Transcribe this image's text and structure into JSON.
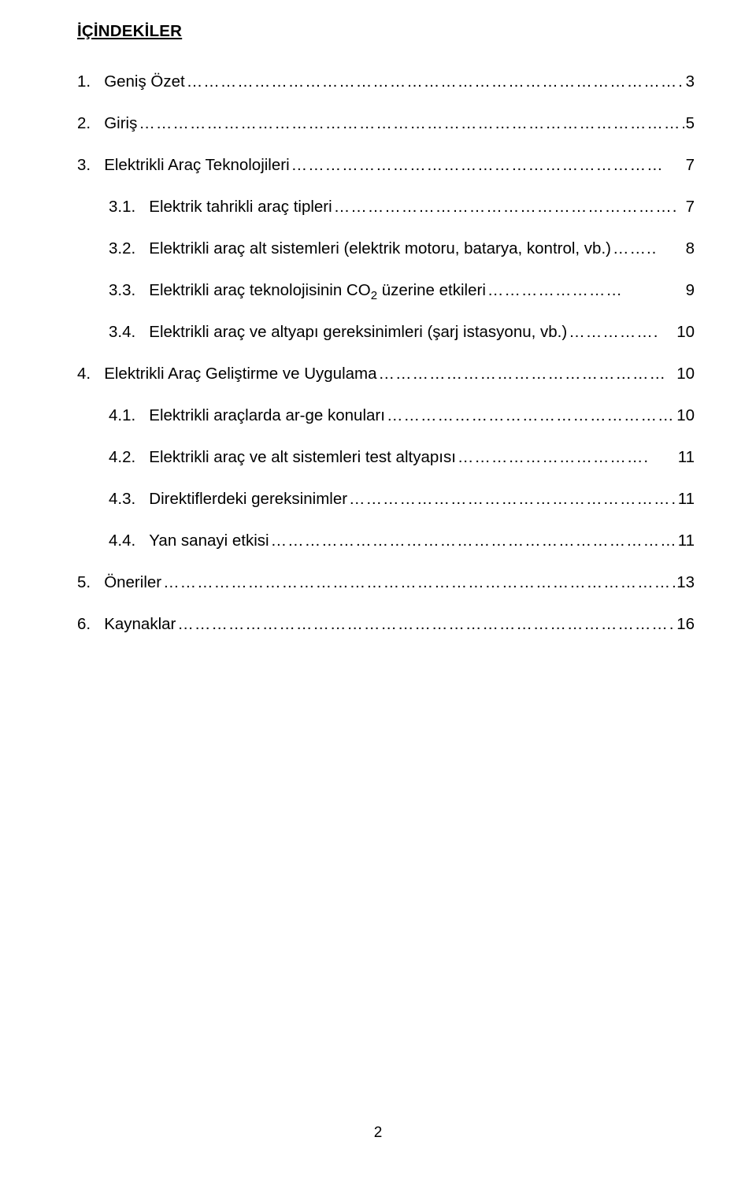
{
  "title": "İÇİNDEKİLER",
  "page_number": "2",
  "typography": {
    "body_fontsize_pt": 15,
    "title_fontsize_pt": 15,
    "font_family": "Verdana"
  },
  "colors": {
    "text": "#000000",
    "background": "#ffffff"
  },
  "toc": [
    {
      "num": "1.",
      "label": "Geniş Özet ",
      "leader": "……………………………………………………………………………………",
      "page": " 3",
      "indent": false
    },
    {
      "num": "2.",
      "label": "Giriş ",
      "leader": "………………………………………………………………………………………………..",
      "page": " 5",
      "indent": false
    },
    {
      "num": "3.",
      "label": "Elektrikli Araç Teknolojileri ",
      "leader": "…………………………………………………………",
      "page": " 7",
      "indent": false
    },
    {
      "num": "3.1.",
      "label": "Elektrik tahrikli araç tipleri ",
      "leader": "…………………………………………………….",
      "page": " 7",
      "indent": true
    },
    {
      "num": "3.2.",
      "label": "Elektrikli araç alt sistemleri (elektrik motoru, batarya, kontrol, vb.) ",
      "leader": "……..",
      "page": " 8",
      "indent": true
    },
    {
      "num": "3.3.",
      "label_html": "Elektrikli araç teknolojisinin CO<sub class=\"sub\">2</sub> üzerine etkileri ",
      "leader": "……………………",
      "page": " 9",
      "indent": true
    },
    {
      "num": "3.4.",
      "label": "Elektrikli araç ve altyapı gereksinimleri (şarj istasyonu, vb.) ",
      "leader": "……………. ",
      "page": "10",
      "indent": true
    },
    {
      "num": "4.",
      "label": "Elektrikli Araç Geliştirme ve Uygulama ",
      "leader": "……………………………………………",
      "page": " 10",
      "indent": false
    },
    {
      "num": "4.1.",
      "label": "Elektrikli araçlarda ar-ge konuları ",
      "leader": "…………………………………………….",
      "page": " 10",
      "indent": true
    },
    {
      "num": "4.2.",
      "label": "Elektrikli araç ve alt sistemleri test altyapısı ",
      "leader": "…………………………….",
      "page": " 11",
      "indent": true
    },
    {
      "num": "4.3.",
      "label": "Direktiflerdeki gereksinimler ",
      "leader": "……………………………………………………...",
      "page": " 11",
      "indent": true
    },
    {
      "num": "4.4.",
      "label": "Yan sanayi etkisi ",
      "leader": "……………………………………………………………………",
      "page": " 11",
      "indent": true
    },
    {
      "num": "5.",
      "label": "Öneriler ",
      "leader": "…………………………………………………………………………………………",
      "page": " 13",
      "indent": false
    },
    {
      "num": "6.",
      "label": "Kaynaklar ",
      "leader": "………………………………………………………………………………………",
      "page": " 16",
      "indent": false
    }
  ]
}
